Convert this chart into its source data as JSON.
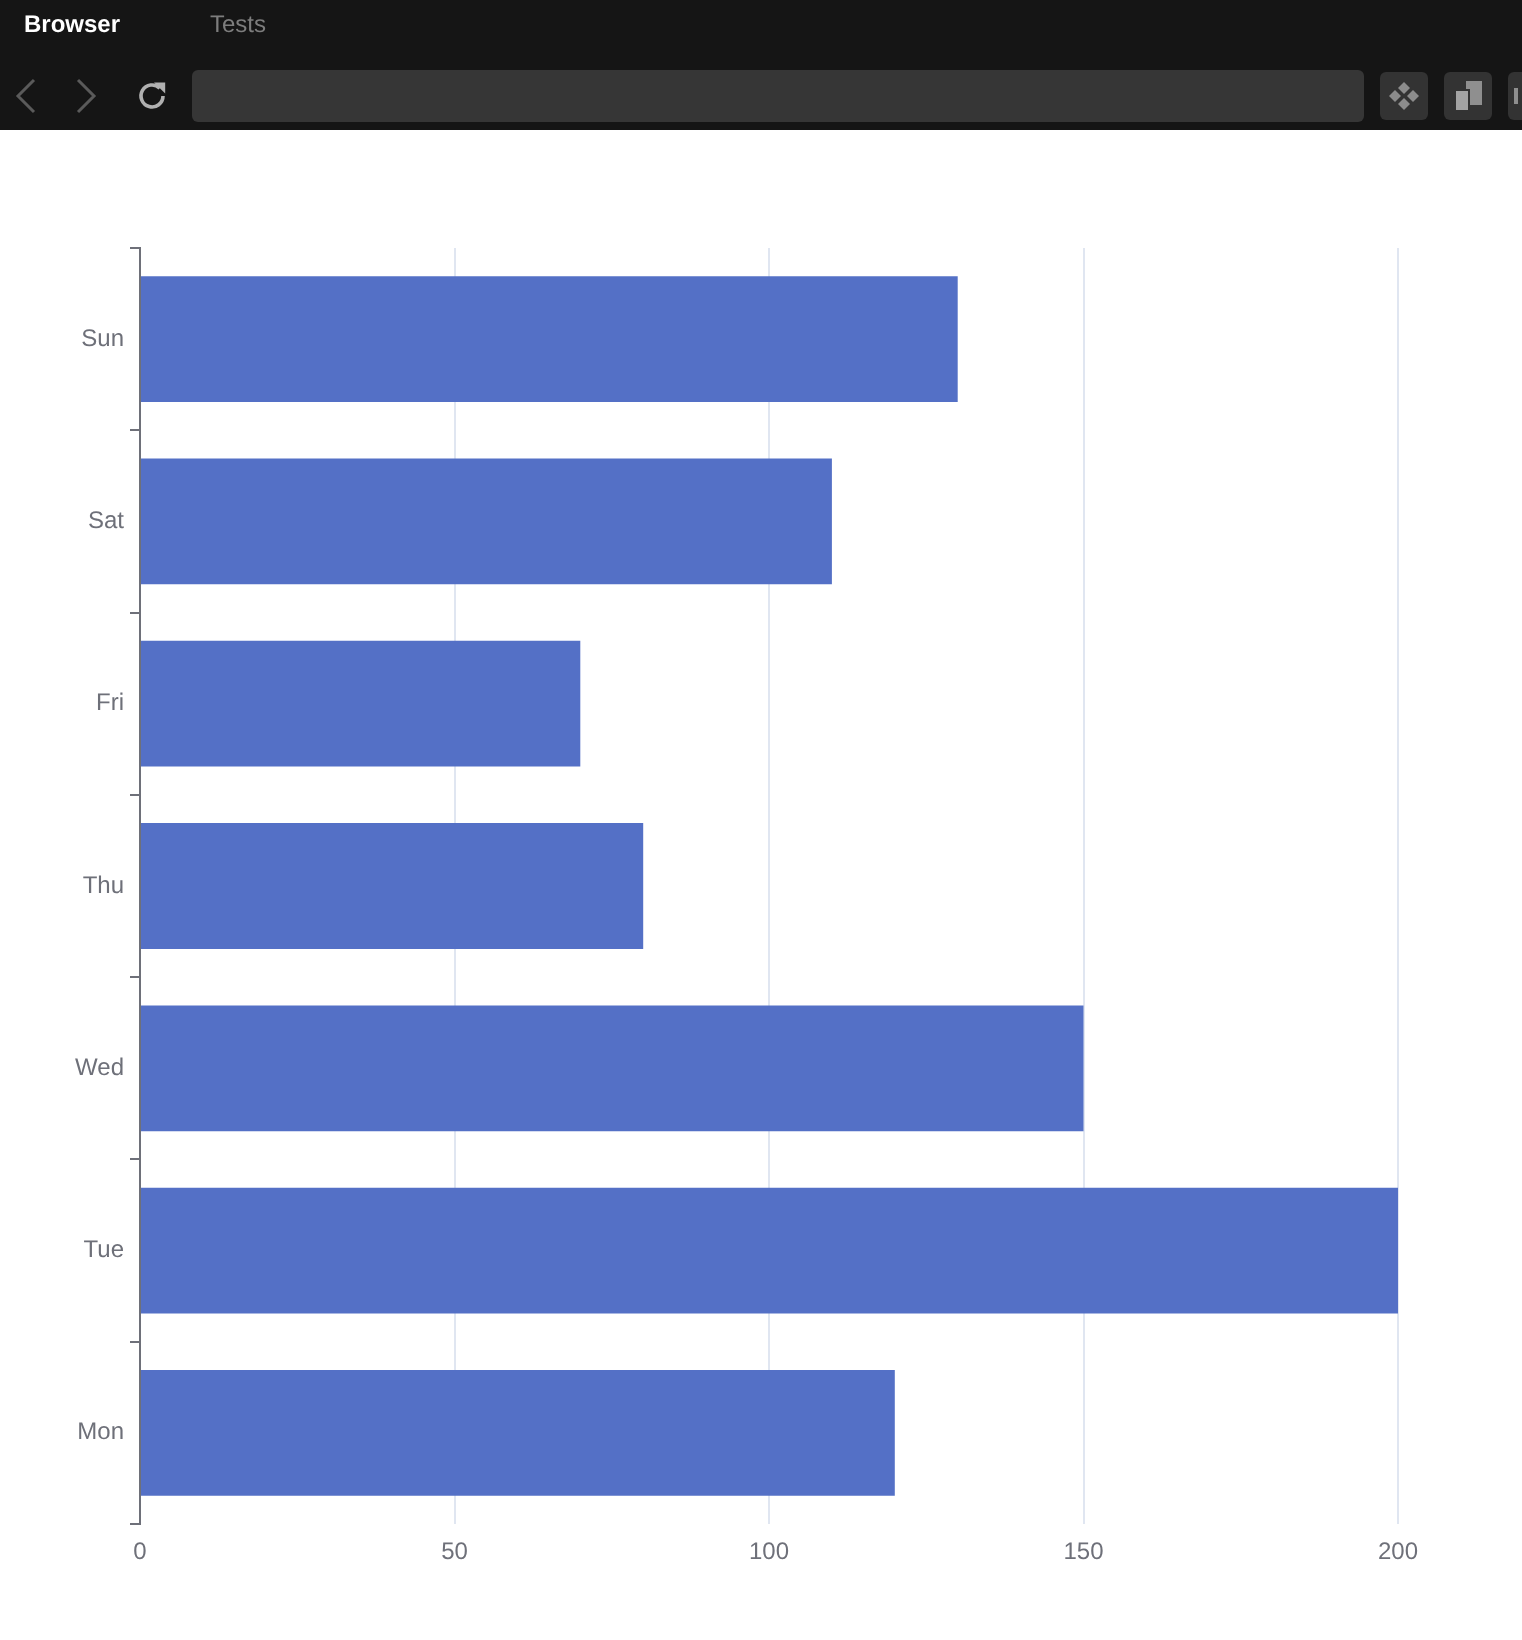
{
  "chart_data": {
    "type": "bar",
    "orientation": "horizontal",
    "categories": [
      "Sun",
      "Sat",
      "Fri",
      "Thu",
      "Wed",
      "Tue",
      "Mon"
    ],
    "values": [
      130,
      110,
      70,
      80,
      150,
      200,
      120
    ],
    "color": "#5470c6",
    "xlim": [
      0,
      200
    ],
    "xticks": [
      0,
      50,
      100,
      150,
      200
    ],
    "grid": "x",
    "annotations": [
      "Browser",
      "Tests"
    ]
  }
}
